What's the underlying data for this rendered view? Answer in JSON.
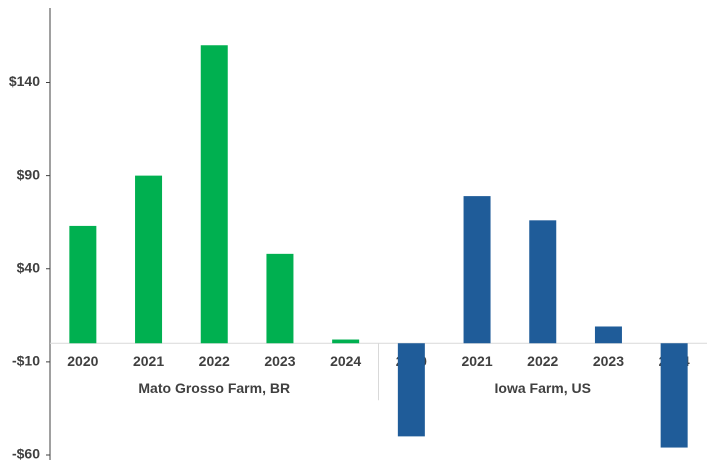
{
  "chart_data": {
    "type": "bar",
    "categories": [
      "2020",
      "2021",
      "2022",
      "2023",
      "2024"
    ],
    "series": [
      {
        "name": "Mato Grosso Farm, BR",
        "color": "#00b050",
        "values": [
          63,
          90,
          160,
          48,
          2
        ]
      },
      {
        "name": "Iowa Farm, US",
        "color": "#1f5c99",
        "values": [
          -50,
          79,
          66,
          9,
          -56
        ]
      }
    ],
    "ylim": [
      -60,
      180
    ],
    "yticks": [
      {
        "value": -60,
        "label": "-$60"
      },
      {
        "value": -10,
        "label": "-$10"
      },
      {
        "value": 40,
        "label": "$40"
      },
      {
        "value": 90,
        "label": "$90"
      },
      {
        "value": 140,
        "label": "$140"
      }
    ]
  }
}
